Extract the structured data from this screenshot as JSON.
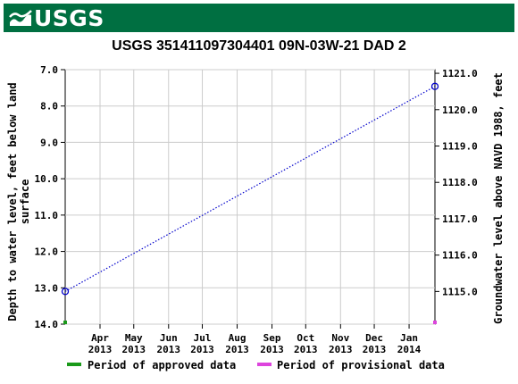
{
  "header": {
    "logo_text": "USGS"
  },
  "chart_data": {
    "type": "line",
    "title": "USGS 351411097304401 09N-03W-21 DAD 2",
    "ylabel_left": [
      "Depth to water level, feet below land",
      "surface"
    ],
    "ylabel_right": "Groundwater level above NAVD 1988, feet",
    "y_left": {
      "min": 7.0,
      "max": 14.0,
      "inverted": true,
      "ticks": [
        "7.0",
        "8.0",
        "9.0",
        "10.0",
        "11.0",
        "12.0",
        "13.0",
        "14.0"
      ],
      "tick_values": [
        7,
        8,
        9,
        10,
        11,
        12,
        13,
        14
      ]
    },
    "y_right": {
      "ticks": [
        "1115.0",
        "1116.0",
        "1117.0",
        "1118.0",
        "1119.0",
        "1120.0",
        "1121.0"
      ],
      "tick_values": [
        1115,
        1116,
        1117,
        1118,
        1119,
        1120,
        1121
      ]
    },
    "x": {
      "range": [
        "2013-03-01",
        "2014-01-24"
      ],
      "ticks": [
        {
          "date": "2013-04-01",
          "month": "Apr",
          "year": "2013"
        },
        {
          "date": "2013-05-01",
          "month": "May",
          "year": "2013"
        },
        {
          "date": "2013-06-01",
          "month": "Jun",
          "year": "2013"
        },
        {
          "date": "2013-07-01",
          "month": "Jul",
          "year": "2013"
        },
        {
          "date": "2013-08-01",
          "month": "Aug",
          "year": "2013"
        },
        {
          "date": "2013-09-01",
          "month": "Sep",
          "year": "2013"
        },
        {
          "date": "2013-10-01",
          "month": "Oct",
          "year": "2013"
        },
        {
          "date": "2013-11-01",
          "month": "Nov",
          "year": "2013"
        },
        {
          "date": "2013-12-01",
          "month": "Dec",
          "year": "2013"
        },
        {
          "date": "2014-01-01",
          "month": "Jan",
          "year": "2014"
        }
      ]
    },
    "series": [
      {
        "points": [
          {
            "date": "2013-03-01",
            "depth": 13.1
          },
          {
            "date": "2014-01-24",
            "depth": 7.46
          }
        ],
        "color": "#0000cc",
        "style": "dotted",
        "markers": "open-circle"
      }
    ],
    "approval_bars": [
      {
        "date": "2013-03-01",
        "status": "approved",
        "color": "#1a9a1a"
      },
      {
        "date": "2014-01-24",
        "status": "provisional",
        "color": "#dd44dd"
      }
    ],
    "grid": true,
    "legend": {
      "placement": "bottom",
      "items": [
        {
          "label": "Period of approved data",
          "color": "#1a9a1a"
        },
        {
          "label": "Period of provisional data",
          "color": "#dd44dd"
        }
      ]
    }
  }
}
